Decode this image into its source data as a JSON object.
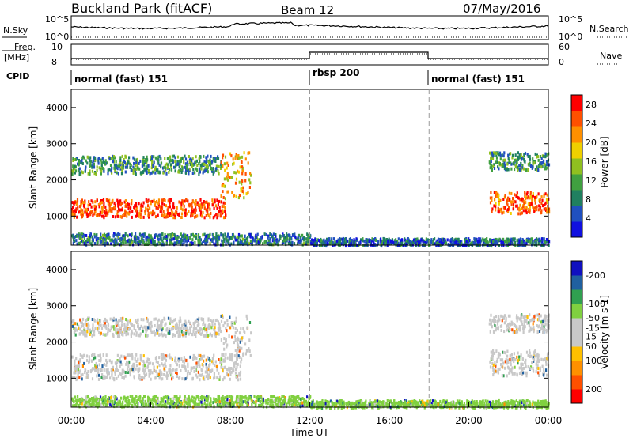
{
  "header": {
    "station": "Buckland Park (fitACF)",
    "beam": "Beam 12",
    "date": "07/May/2016"
  },
  "nsky_panel": {
    "left_label": "N.Sky",
    "right_label": "N.Search",
    "ticks_left": [
      "10^5",
      "10^0"
    ],
    "ticks_right": [
      "10^5",
      "10^0"
    ]
  },
  "freq_panel": {
    "left_label": "Freq.",
    "left_unit": "[MHz]",
    "right_label": "Nave",
    "ticks_left": [
      "10",
      "8"
    ],
    "ticks_right": [
      "60",
      "0"
    ]
  },
  "cpid": {
    "label": "CPID",
    "modes": [
      {
        "name": "normal (fast) 151",
        "start_hour": 0
      },
      {
        "name": "rbsp 200",
        "start_hour": 12
      },
      {
        "name": "normal (fast) 151",
        "start_hour": 18
      }
    ]
  },
  "x_axis": {
    "label": "Time UT",
    "ticks": [
      "00:00",
      "04:00",
      "08:00",
      "12:00",
      "16:00",
      "20:00",
      "00:00"
    ]
  },
  "colors": {
    "power": [
      "#1010e0",
      "#2050c0",
      "#208060",
      "#40a040",
      "#90c020",
      "#f0d000",
      "#ff9000",
      "#ff5000",
      "#ff0000"
    ],
    "velocity": [
      "#ff0000",
      "#ff5000",
      "#ff9000",
      "#ffc000",
      "#c8c8c8",
      "#c8c8c8",
      "#80d040",
      "#30a050",
      "#2060a0",
      "#1010c0"
    ]
  },
  "chart_data": [
    {
      "type": "heatmap",
      "name": "power",
      "ylabel": "Slant Range [km]",
      "yticks": [
        "1000",
        "2000",
        "3000",
        "4000"
      ],
      "ylim": [
        200,
        4500
      ],
      "xlim": [
        0,
        24
      ],
      "colorbar_label": "Power [dB]",
      "colorbar_ticks": [
        "4",
        "8",
        "12",
        "16",
        "20",
        "24",
        "28"
      ],
      "colorbar_range": [
        0,
        30
      ],
      "regions": [
        {
          "t": [
            0,
            7.8
          ],
          "r": [
            1000,
            1500
          ],
          "level": 26
        },
        {
          "t": [
            0,
            7.5
          ],
          "r": [
            2200,
            2700
          ],
          "level": 10
        },
        {
          "t": [
            7.5,
            9.0
          ],
          "r": [
            1500,
            2800
          ],
          "level": 20
        },
        {
          "t": [
            0,
            12
          ],
          "r": [
            250,
            550
          ],
          "level": 8
        },
        {
          "t": [
            12,
            24
          ],
          "r": [
            220,
            420
          ],
          "level": 6
        },
        {
          "t": [
            21,
            24
          ],
          "r": [
            1100,
            1700
          ],
          "level": 24
        },
        {
          "t": [
            21,
            24
          ],
          "r": [
            2300,
            2800
          ],
          "level": 10
        }
      ]
    },
    {
      "type": "heatmap",
      "name": "velocity",
      "ylabel": "Slant Range [km]",
      "yticks": [
        "1000",
        "2000",
        "3000",
        "4000"
      ],
      "ylim": [
        200,
        4500
      ],
      "xlim": [
        0,
        24
      ],
      "colorbar_label": "Velocity [m s-1]",
      "colorbar_ticks": [
        "200",
        "100",
        "50",
        "15",
        "-15",
        "-50",
        "-100",
        "-200"
      ],
      "colorbar_range": [
        -250,
        250
      ],
      "regions": [
        {
          "t": [
            0,
            8.5
          ],
          "r": [
            1000,
            1700
          ],
          "level": 0
        },
        {
          "t": [
            0,
            7.5
          ],
          "r": [
            2200,
            2700
          ],
          "level": 0
        },
        {
          "t": [
            7.5,
            9.0
          ],
          "r": [
            1500,
            2800
          ],
          "level": 0
        },
        {
          "t": [
            0,
            12
          ],
          "r": [
            250,
            550
          ],
          "level": -60
        },
        {
          "t": [
            12,
            24
          ],
          "r": [
            220,
            420
          ],
          "level": -80
        },
        {
          "t": [
            21,
            24
          ],
          "r": [
            1100,
            1800
          ],
          "level": 0
        },
        {
          "t": [
            21,
            24
          ],
          "r": [
            2300,
            2800
          ],
          "level": 0
        }
      ]
    }
  ]
}
